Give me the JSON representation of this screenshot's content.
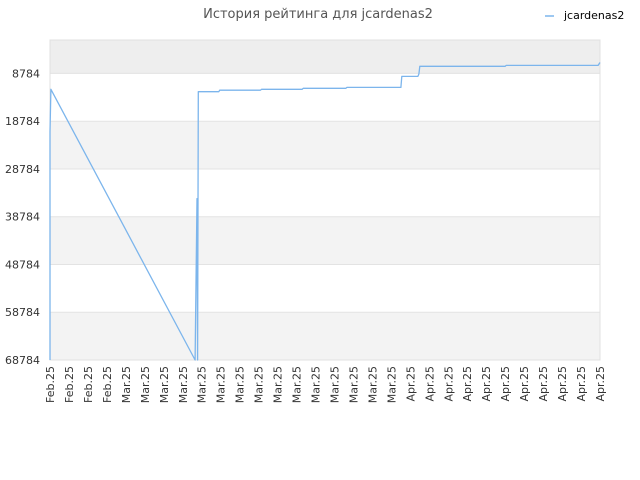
{
  "chart_data": {
    "type": "line",
    "title": "История рейтинга для jcardenas2",
    "xlabel": "",
    "ylabel": "",
    "y_inverted": true,
    "ylim": [
      68784,
      0
    ],
    "y_ticks": [
      8784,
      18784,
      28784,
      38784,
      48784,
      58784,
      68784
    ],
    "x_ticks": [
      "Feb.25",
      "Feb.25",
      "Feb.25",
      "Feb.25",
      "Mar.25",
      "Mar.25",
      "Mar.25",
      "Mar.25",
      "Mar.25",
      "Mar.25",
      "Mar.25",
      "Mar.25",
      "Mar.25",
      "Mar.25",
      "Mar.25",
      "Mar.25",
      "Mar.25",
      "Mar.25",
      "Mar.25",
      "Apr.25",
      "Apr.25",
      "Apr.25",
      "Apr.25",
      "Apr.25",
      "Apr.25",
      "Apr.25",
      "Apr.25",
      "Apr.25",
      "Apr.25",
      "Apr.25"
    ],
    "grid": true,
    "legend": "top-right",
    "series": [
      {
        "name": "jcardenas2",
        "color": "#7cb5ec",
        "points": [
          [
            0.0,
            68784
          ],
          [
            0.0,
            21000
          ],
          [
            0.05,
            12100
          ],
          [
            7.65,
            68784
          ],
          [
            7.75,
            35000
          ],
          [
            7.78,
            68784
          ],
          [
            7.82,
            12600
          ],
          [
            8.9,
            12600
          ],
          [
            8.95,
            12300
          ],
          [
            11.1,
            12300
          ],
          [
            11.15,
            12100
          ],
          [
            13.3,
            12100
          ],
          [
            13.35,
            11900
          ],
          [
            15.6,
            11900
          ],
          [
            15.65,
            11700
          ],
          [
            18.5,
            11700
          ],
          [
            18.55,
            9400
          ],
          [
            19.4,
            9400
          ],
          [
            19.45,
            8900
          ],
          [
            19.5,
            7300
          ],
          [
            24.0,
            7300
          ],
          [
            24.05,
            7100
          ],
          [
            28.9,
            7100
          ],
          [
            29.0,
            6500
          ]
        ]
      }
    ]
  }
}
